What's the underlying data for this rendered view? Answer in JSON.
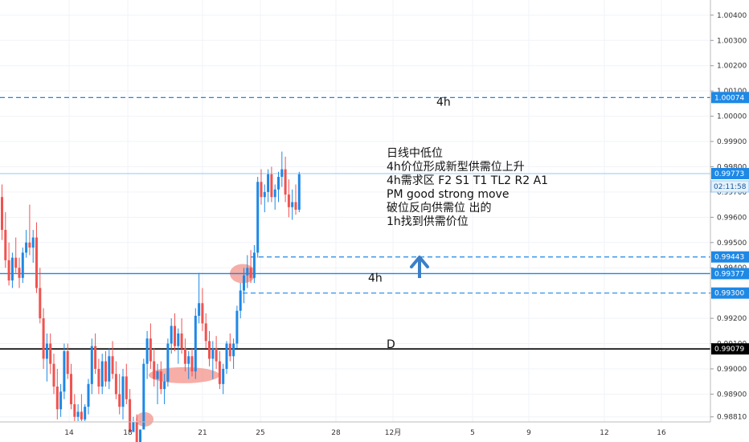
{
  "chart_data": {
    "type": "candlestick",
    "y_axis": {
      "ticks": [
        "1.00400",
        "1.00300",
        "1.00200",
        "1.00100",
        "1.00000",
        "0.99900",
        "0.99800",
        "0.99700",
        "0.99600",
        "0.99500",
        "0.99400",
        "0.99300",
        "0.99200",
        "0.99100",
        "0.99000",
        "0.98900",
        "0.98810"
      ],
      "ylim": [
        0.9879,
        1.0046
      ],
      "position": "right"
    },
    "x_axis": {
      "ticks": [
        "14",
        "18",
        "21",
        "25",
        "28",
        "12月",
        "5",
        "9",
        "12",
        "16"
      ]
    },
    "levels": [
      {
        "price": 1.00074,
        "label": "1.00074",
        "style": "dashed",
        "color": "#1e88e5",
        "text": "4h"
      },
      {
        "price": 0.99773,
        "label": "0.99773",
        "style": "thin",
        "color": "#90caf9",
        "text": ""
      },
      {
        "price": 0.99443,
        "label": "0.99443",
        "style": "dashed",
        "color": "#1e88e5",
        "text": ""
      },
      {
        "price": 0.99377,
        "label": "0.99377",
        "style": "solid",
        "color": "#1e88e5",
        "text": "4h"
      },
      {
        "price": 0.993,
        "label": "0.99300",
        "style": "dashed",
        "color": "#1e88e5",
        "text": ""
      },
      {
        "price": 0.99079,
        "label": "0.99079",
        "style": "solid",
        "color": "#000000",
        "text": "D"
      }
    ],
    "countdown": "02:11:58",
    "candles": [
      [
        0.9968,
        0.9973,
        0.9951,
        0.9955
      ],
      [
        0.9955,
        0.9962,
        0.994,
        0.9943
      ],
      [
        0.9943,
        0.995,
        0.9933,
        0.9935
      ],
      [
        0.9935,
        0.9946,
        0.9932,
        0.9944
      ],
      [
        0.9944,
        0.9952,
        0.9938,
        0.994
      ],
      [
        0.994,
        0.9944,
        0.9932,
        0.9936
      ],
      [
        0.9936,
        0.9948,
        0.9934,
        0.9946
      ],
      [
        0.9946,
        0.9955,
        0.9944,
        0.995
      ],
      [
        0.995,
        0.9965,
        0.9945,
        0.9948
      ],
      [
        0.9948,
        0.9955,
        0.9942,
        0.9952
      ],
      [
        0.9952,
        0.9958,
        0.993,
        0.9932
      ],
      [
        0.9932,
        0.994,
        0.9918,
        0.992
      ],
      [
        0.992,
        0.9924,
        0.99,
        0.9904
      ],
      [
        0.9904,
        0.9914,
        0.9895,
        0.991
      ],
      [
        0.991,
        0.9914,
        0.9898,
        0.9902
      ],
      [
        0.9902,
        0.9906,
        0.989,
        0.9893
      ],
      [
        0.9893,
        0.99,
        0.988,
        0.9884
      ],
      [
        0.9884,
        0.9894,
        0.9881,
        0.9891
      ],
      [
        0.9891,
        0.991,
        0.9888,
        0.9907
      ],
      [
        0.9907,
        0.991,
        0.9896,
        0.9898
      ],
      [
        0.9898,
        0.9902,
        0.9884,
        0.9886
      ],
      [
        0.9886,
        0.989,
        0.9878,
        0.9881
      ],
      [
        0.9881,
        0.9886,
        0.9876,
        0.9883
      ],
      [
        0.9883,
        0.989,
        0.9879,
        0.988
      ],
      [
        0.988,
        0.9886,
        0.9875,
        0.9885
      ],
      [
        0.9885,
        0.9896,
        0.9882,
        0.9894
      ],
      [
        0.9894,
        0.9912,
        0.989,
        0.9909
      ],
      [
        0.9909,
        0.9914,
        0.9898,
        0.99
      ],
      [
        0.99,
        0.9904,
        0.989,
        0.9893
      ],
      [
        0.9893,
        0.9906,
        0.989,
        0.9903
      ],
      [
        0.9903,
        0.9907,
        0.9893,
        0.9895
      ],
      [
        0.9895,
        0.9908,
        0.9892,
        0.9905
      ],
      [
        0.9905,
        0.9911,
        0.9896,
        0.9898
      ],
      [
        0.9898,
        0.9903,
        0.9888,
        0.989
      ],
      [
        0.989,
        0.9898,
        0.9882,
        0.9885
      ],
      [
        0.9885,
        0.99,
        0.988,
        0.9897
      ],
      [
        0.9897,
        0.9902,
        0.9886,
        0.9888
      ],
      [
        0.9888,
        0.9892,
        0.9872,
        0.9875
      ],
      [
        0.9875,
        0.9881,
        0.9866,
        0.9879
      ],
      [
        0.9879,
        0.9882,
        0.9868,
        0.987
      ],
      [
        0.987,
        0.9879,
        0.9866,
        0.9876
      ],
      [
        0.9876,
        0.9904,
        0.9874,
        0.9902
      ],
      [
        0.9902,
        0.9915,
        0.9896,
        0.9912
      ],
      [
        0.9912,
        0.9918,
        0.99,
        0.9903
      ],
      [
        0.9903,
        0.9908,
        0.9893,
        0.9896
      ],
      [
        0.9896,
        0.9902,
        0.9886,
        0.9899
      ],
      [
        0.9899,
        0.9903,
        0.989,
        0.9892
      ],
      [
        0.9892,
        0.9898,
        0.9886,
        0.9895
      ],
      [
        0.9895,
        0.9912,
        0.9893,
        0.991
      ],
      [
        0.991,
        0.992,
        0.9906,
        0.9917
      ],
      [
        0.9917,
        0.9922,
        0.9907,
        0.9909
      ],
      [
        0.9909,
        0.9916,
        0.9902,
        0.9914
      ],
      [
        0.9914,
        0.992,
        0.9906,
        0.9908
      ],
      [
        0.9908,
        0.9912,
        0.9899,
        0.9902
      ],
      [
        0.9902,
        0.9907,
        0.9896,
        0.9905
      ],
      [
        0.9905,
        0.9908,
        0.9897,
        0.9899
      ],
      [
        0.9899,
        0.9924,
        0.9896,
        0.9921
      ],
      [
        0.9921,
        0.9938,
        0.9918,
        0.9926
      ],
      [
        0.9926,
        0.9932,
        0.9915,
        0.9918
      ],
      [
        0.9918,
        0.9922,
        0.9908,
        0.9911
      ],
      [
        0.9911,
        0.9915,
        0.9901,
        0.9904
      ],
      [
        0.9904,
        0.9911,
        0.9896,
        0.9908
      ],
      [
        0.9908,
        0.9913,
        0.99,
        0.9903
      ],
      [
        0.9903,
        0.9907,
        0.9892,
        0.9894
      ],
      [
        0.9894,
        0.9902,
        0.989,
        0.99
      ],
      [
        0.99,
        0.9911,
        0.9898,
        0.991
      ],
      [
        0.991,
        0.9914,
        0.9903,
        0.9905
      ],
      [
        0.9905,
        0.9912,
        0.99,
        0.991
      ],
      [
        0.991,
        0.9925,
        0.9908,
        0.9923
      ],
      [
        0.9923,
        0.9934,
        0.992,
        0.9931
      ],
      [
        0.9931,
        0.994,
        0.9926,
        0.9937
      ],
      [
        0.9937,
        0.9945,
        0.9932,
        0.994
      ],
      [
        0.994,
        0.9947,
        0.9934,
        0.9936
      ],
      [
        0.9936,
        0.9949,
        0.9934,
        0.9946
      ],
      [
        0.9946,
        0.9976,
        0.9944,
        0.9974
      ],
      [
        0.9974,
        0.9979,
        0.9965,
        0.9968
      ],
      [
        0.9968,
        0.9973,
        0.9962,
        0.997
      ],
      [
        0.997,
        0.9979,
        0.9966,
        0.9977
      ],
      [
        0.9977,
        0.998,
        0.9966,
        0.9968
      ],
      [
        0.9968,
        0.9973,
        0.9963,
        0.9971
      ],
      [
        0.9971,
        0.9978,
        0.9966,
        0.9976
      ],
      [
        0.9976,
        0.9986,
        0.9972,
        0.9979
      ],
      [
        0.9979,
        0.9984,
        0.9966,
        0.9969
      ],
      [
        0.9969,
        0.9975,
        0.996,
        0.9964
      ],
      [
        0.9964,
        0.9971,
        0.9959,
        0.9966
      ],
      [
        0.9966,
        0.9973,
        0.9961,
        0.9963
      ],
      [
        0.9963,
        0.9978,
        0.9962,
        0.9977
      ]
    ],
    "annotation": {
      "lines": [
        "日线中低位",
        "4h价位形成新型供需位上升",
        "4h需求区 F2 S1 T1 TL2 R2 A1",
        "PM good  strong move",
        "破位反向供需位 出的",
        "1h找到供需价位"
      ]
    },
    "colors": {
      "up": "#1e88e5",
      "down": "#ef5350",
      "highlight": "#f28b82"
    }
  }
}
